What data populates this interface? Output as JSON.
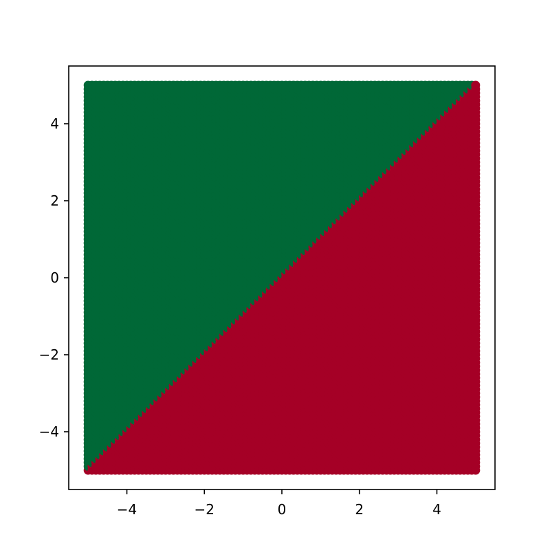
{
  "chart_data": {
    "type": "scatter",
    "title": "",
    "xlabel": "",
    "ylabel": "",
    "xlim": [
      -5.5,
      5.5
    ],
    "ylim": [
      -5.5,
      5.5
    ],
    "grid": false,
    "legend": "none",
    "x_ticks": [
      -4,
      -2,
      0,
      2,
      4
    ],
    "y_ticks": [
      -4,
      -2,
      0,
      2,
      4
    ],
    "x_tick_labels": [
      "−4",
      "−2",
      "0",
      "2",
      "4"
    ],
    "y_tick_labels": [
      "−4",
      "−2",
      "0",
      "2",
      "4"
    ],
    "grid_points": {
      "x_range": [
        -5,
        5
      ],
      "y_range": [
        -5,
        5
      ],
      "step": 0.1
    },
    "classes": [
      {
        "rule": "y > x",
        "color": "#006837"
      },
      {
        "rule": "y < x",
        "color": "#a50026"
      }
    ],
    "boundary": {
      "slope": 1,
      "intercept": 0
    }
  }
}
